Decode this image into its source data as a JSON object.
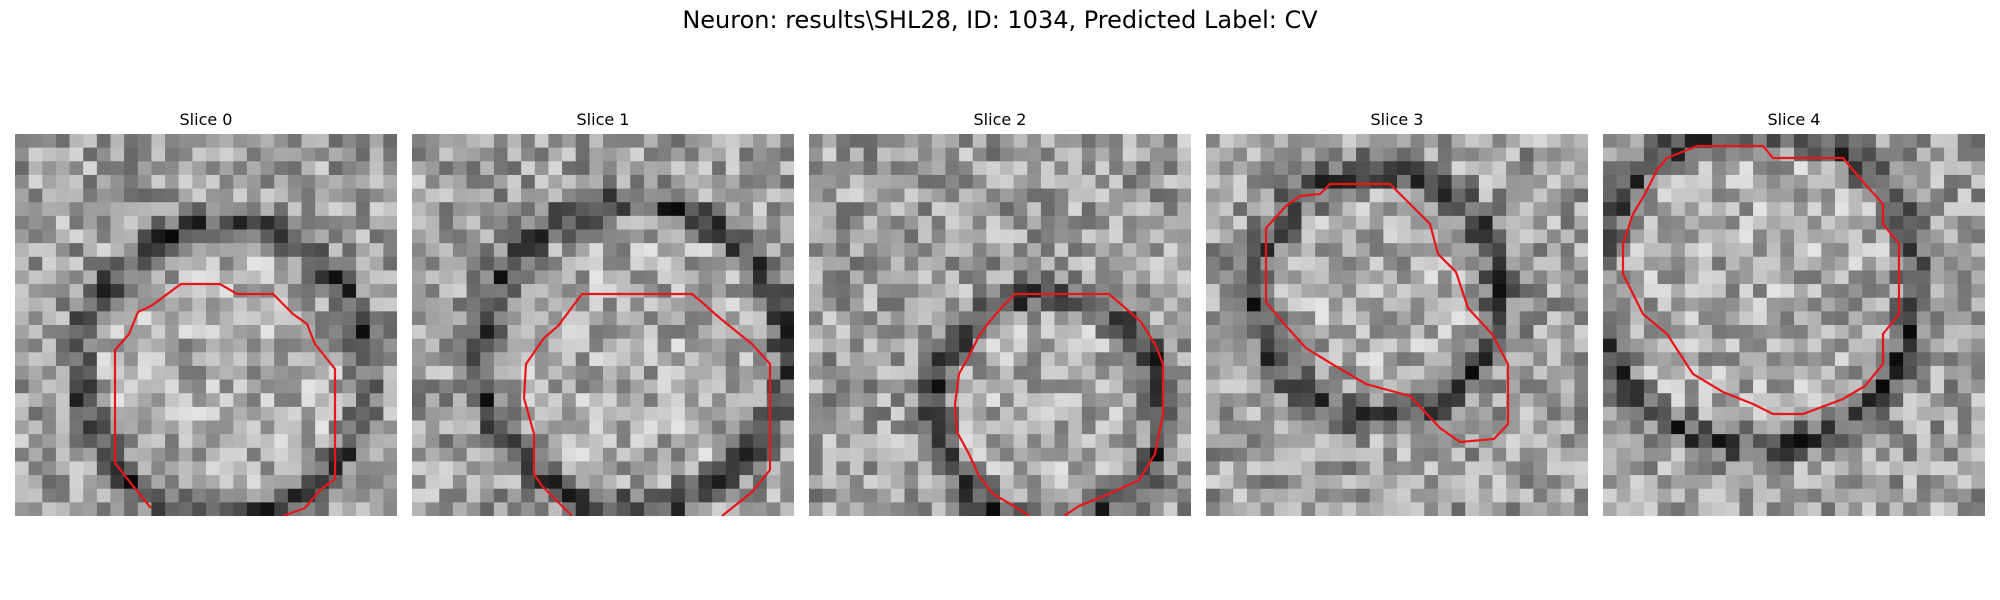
{
  "title": "Neuron: results\\SHL28, ID: 1034, Predicted Label: CV",
  "colors": {
    "contour": "#e8161b",
    "background": "#ffffff"
  },
  "slices": [
    {
      "label": "Slice 0"
    },
    {
      "label": "Slice 1"
    },
    {
      "label": "Slice 2"
    },
    {
      "label": "Slice 3"
    },
    {
      "label": "Slice 4"
    }
  ]
}
